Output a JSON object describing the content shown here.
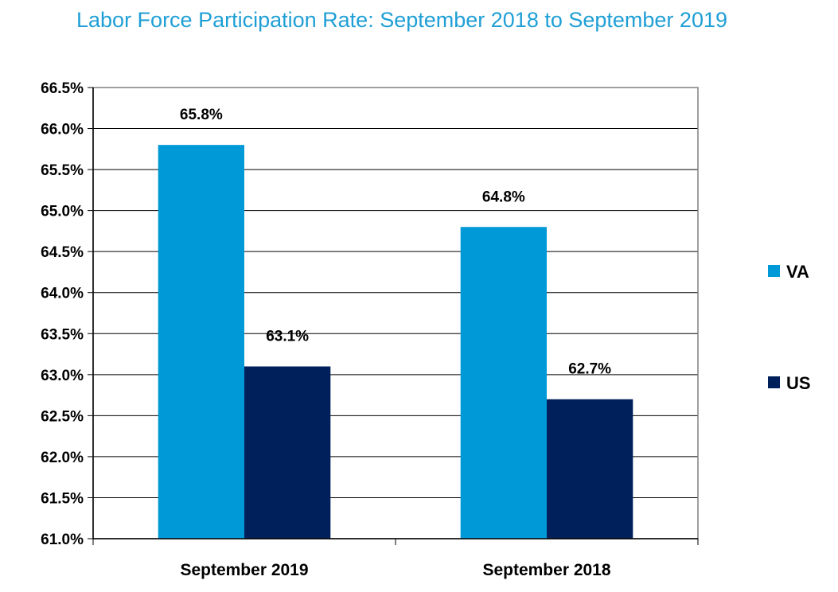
{
  "chart_data": {
    "type": "bar",
    "title": "Labor Force Participation Rate:  September 2018 to September 2019",
    "categories": [
      "September 2019",
      "September 2018"
    ],
    "series": [
      {
        "name": "VA",
        "values": [
          65.8,
          64.8
        ],
        "color": "#0099d8",
        "labels": [
          "65.8%",
          "64.8%"
        ]
      },
      {
        "name": "US",
        "values": [
          63.1,
          62.7
        ],
        "color": "#00205b",
        "labels": [
          "63.1%",
          "62.7%"
        ]
      }
    ],
    "ylim": [
      61.0,
      66.5
    ],
    "yticks": [
      61.0,
      61.5,
      62.0,
      62.5,
      63.0,
      63.5,
      64.0,
      64.5,
      65.0,
      65.5,
      66.0,
      66.5
    ],
    "ytick_labels": [
      "61.0%",
      "61.5%",
      "62.0%",
      "62.5%",
      "63.0%",
      "63.5%",
      "64.0%",
      "64.5%",
      "65.0%",
      "65.5%",
      "66.0%",
      "66.5%"
    ],
    "grid": true,
    "legend_position": "right"
  }
}
